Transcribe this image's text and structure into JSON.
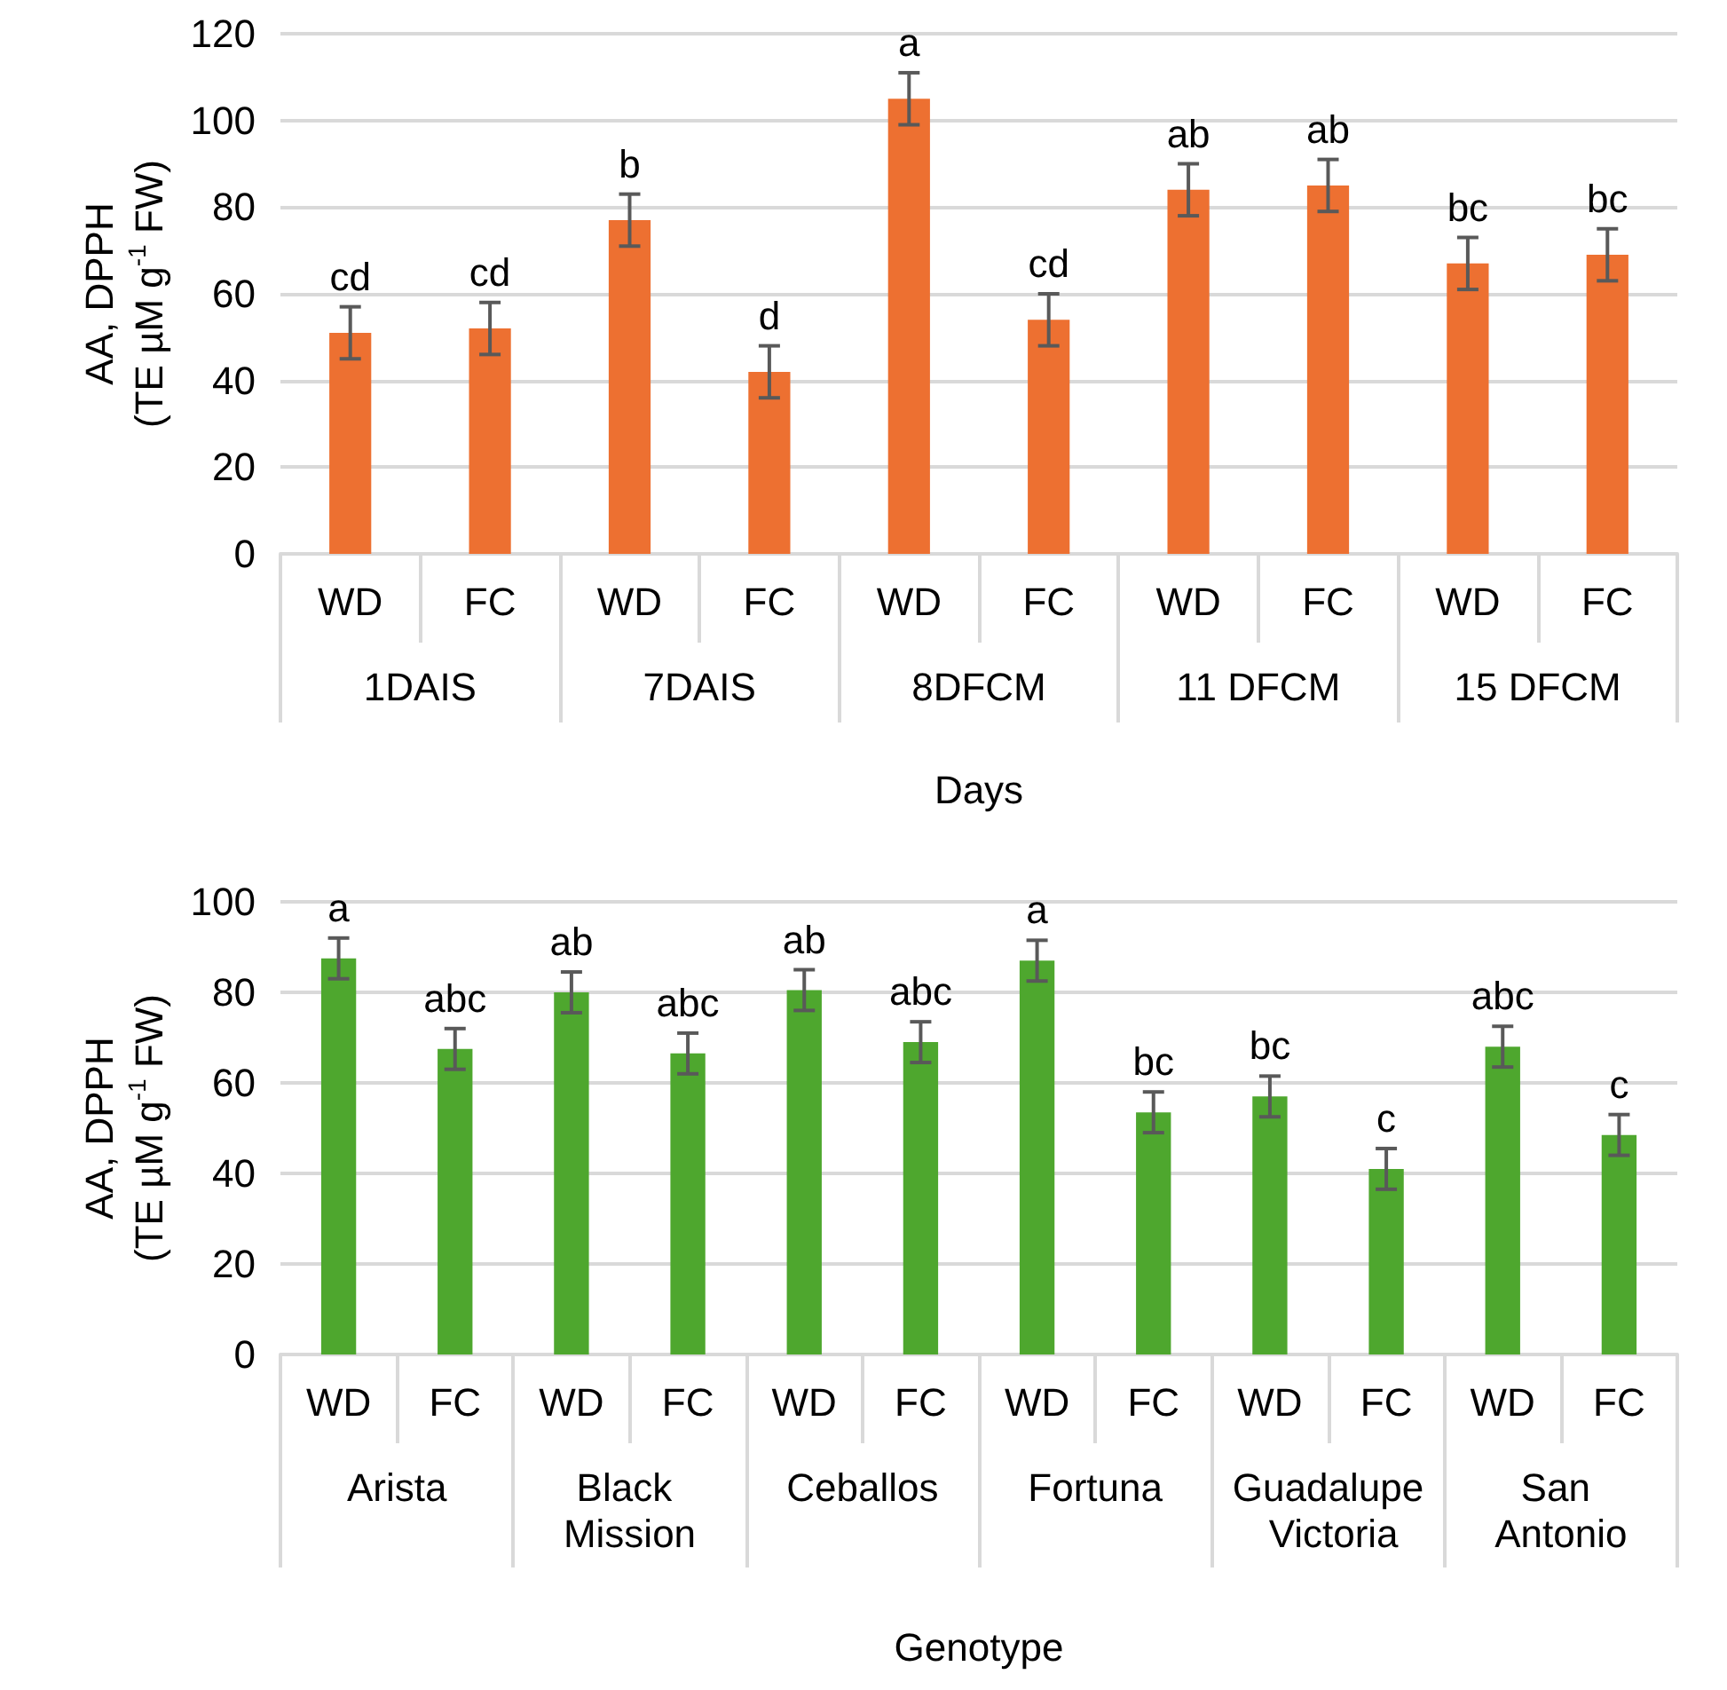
{
  "chart_data": [
    {
      "type": "bar",
      "xlabel": "Days",
      "ylabel": "AA, DPPH\n(TE µM g$^{-1}$ FW)",
      "categories": [
        "WD",
        "FC",
        "WD",
        "FC",
        "WD",
        "FC",
        "WD",
        "FC",
        "WD",
        "FC"
      ],
      "annotations": [
        "1DAIS",
        "7DAIS",
        "8DFCM",
        "11 DFCM",
        "15 DFCM"
      ],
      "series": [
        {
          "color": "#ed7031",
          "values": [
            51,
            52,
            77,
            42,
            105,
            54,
            84,
            85,
            67,
            69
          ],
          "errors": [
            6,
            6,
            6,
            6,
            6,
            6,
            6,
            6,
            6,
            6
          ],
          "value_labels": [
            "cd",
            "cd",
            "b",
            "d",
            "a",
            "cd",
            "ab",
            "ab",
            "bc",
            "bc"
          ]
        }
      ],
      "ylim": [
        0,
        120
      ],
      "yticks": [
        0,
        20,
        40,
        60,
        80,
        100,
        120
      ],
      "grid": "y"
    },
    {
      "type": "bar",
      "xlabel": "Genotype",
      "ylabel": "AA, DPPH\n(TE µM g$^{-1}$ FW)",
      "categories": [
        "WD",
        "FC",
        "WD",
        "FC",
        "WD",
        "FC",
        "WD",
        "FC",
        "WD",
        "FC",
        "WD",
        "FC"
      ],
      "annotations": [
        "Arista",
        "Black Mission",
        "Ceballos",
        "Fortuna",
        "Guadalupe Victoria",
        "San Antonio"
      ],
      "series": [
        {
          "color": "#4ea72e",
          "values": [
            87.5,
            67.5,
            80,
            66.5,
            80.5,
            69,
            87,
            53.5,
            57,
            41,
            68,
            48.5
          ],
          "errors": [
            4.5,
            4.5,
            4.5,
            4.5,
            4.5,
            4.5,
            4.5,
            4.5,
            4.5,
            4.5,
            4.5,
            4.5
          ],
          "value_labels": [
            "a",
            "abc",
            "ab",
            "abc",
            "ab",
            "abc",
            "a",
            "bc",
            "bc",
            "c",
            "abc",
            "c"
          ]
        }
      ],
      "ylim": [
        0,
        100
      ],
      "yticks": [
        0,
        20,
        40,
        60,
        80,
        100
      ],
      "grid": "y"
    }
  ]
}
